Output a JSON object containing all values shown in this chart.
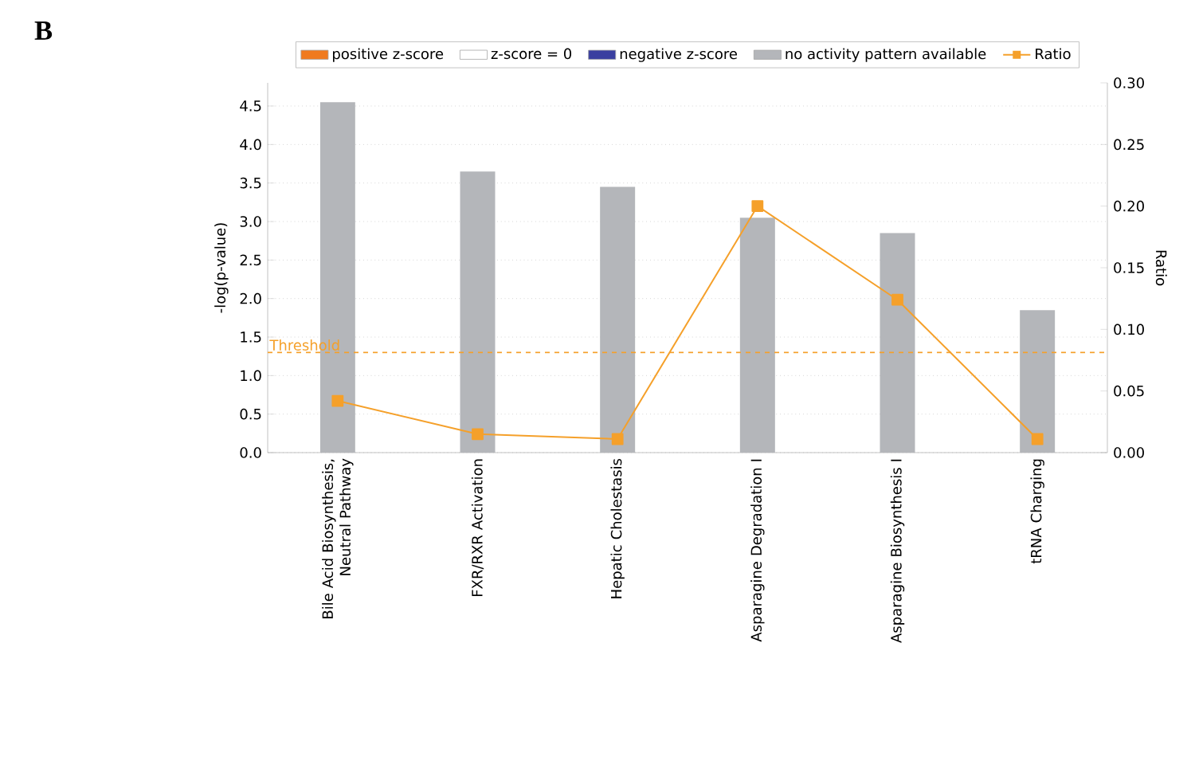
{
  "chart_data": {
    "type": "bar",
    "categories": [
      "Bile Acid Biosynthesis, Neutral Pathway",
      "FXR/RXR Activation",
      "Hepatic Cholestasis",
      "Asparagine Degradation I",
      "Asparagine Biosynthesis I",
      "tRNA Charging"
    ],
    "ylabel": "-log(p-value)",
    "y2label": "Ratio",
    "annotations": [
      "B"
    ],
    "series": [
      {
        "name": "positive z-score",
        "color": "#f07a1e",
        "values": [
          null,
          null,
          null,
          null,
          null,
          null
        ]
      },
      {
        "name": "z-score = 0",
        "color": "#ffffff",
        "values": [
          null,
          null,
          null,
          null,
          null,
          null
        ]
      },
      {
        "name": "negative z-score",
        "color": "#3a3fa0",
        "values": [
          null,
          null,
          null,
          null,
          null,
          null
        ]
      },
      {
        "name": "no activity pattern available",
        "color": "#b4b6ba",
        "values": [
          4.55,
          3.65,
          3.45,
          3.05,
          2.85,
          1.85
        ]
      },
      {
        "name": "Ratio",
        "type": "line",
        "axis": "y2",
        "color": "#f5a02a",
        "values": [
          0.042,
          0.015,
          0.011,
          0.2,
          0.124,
          0.011
        ]
      }
    ],
    "ylim": [
      0,
      4.8
    ],
    "yticks": [
      {
        "value": 0,
        "label": "0.0"
      },
      {
        "value": 0.5,
        "label": "0.5"
      },
      {
        "value": 1,
        "label": "1.0"
      },
      {
        "value": 1.5,
        "label": "1.5"
      },
      {
        "value": 2,
        "label": "2.0"
      },
      {
        "value": 2.5,
        "label": "2.5"
      },
      {
        "value": 3,
        "label": "3.0"
      },
      {
        "value": 3.5,
        "label": "3.5"
      },
      {
        "value": 4,
        "label": "4.0"
      },
      {
        "value": 4.5,
        "label": "4.5"
      }
    ],
    "y2lim": [
      0,
      0.3
    ],
    "y2ticks": [
      {
        "value": 0,
        "label": "0.00"
      },
      {
        "value": 0.05,
        "label": "0.05"
      },
      {
        "value": 0.1,
        "label": "0.10"
      },
      {
        "value": 0.15,
        "label": "0.15"
      },
      {
        "value": 0.2,
        "label": "0.20"
      },
      {
        "value": 0.25,
        "label": "0.25"
      },
      {
        "value": 0.3,
        "label": "0.30"
      }
    ],
    "ref_lines": [
      {
        "axis": "y",
        "value": 1.3,
        "label": "Threshold",
        "color": "#f5a02a",
        "line_style": "dashed"
      }
    ],
    "grid": "y",
    "legend": "top",
    "marker": "square",
    "line_style": "solid"
  }
}
